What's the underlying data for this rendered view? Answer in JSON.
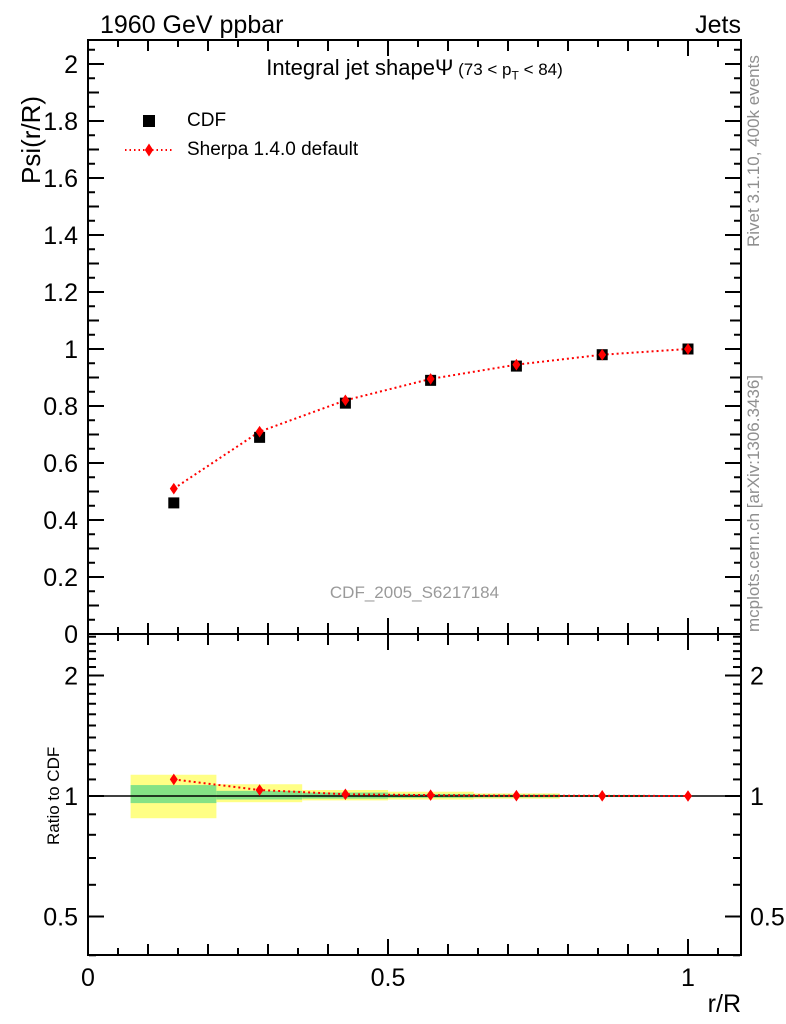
{
  "header": {
    "left": "1960 GeV ppbar",
    "right": "Jets"
  },
  "title": {
    "main": "Integral jet shapeΨ",
    "cond_pre": " (73 < p",
    "cond_sub": "T",
    "cond_post": " < 84)"
  },
  "labels": {
    "y_top": "Psi(r/R)",
    "y_ratio": "Ratio to CDF",
    "x": "r/R",
    "watermark": "CDF_2005_S6217184",
    "side_top": "Rivet 3.1.10,  400k events",
    "side_bottom": "mcplots.cern.ch [arXiv:1306.3436]"
  },
  "legend": [
    {
      "label": "CDF",
      "marker": "black-square"
    },
    {
      "label": "Sherpa 1.4.0 default",
      "marker": "red-diamond-dotted-line"
    }
  ],
  "colors": {
    "data": "#000000",
    "mc": "#ff0000",
    "band_outer": "#ffff85",
    "band_inner": "#85e285",
    "frame": "#000000",
    "gray_text": "#8f8f8f"
  },
  "chart_data": [
    {
      "type": "line",
      "panel": "main",
      "title": "Integral jet shape Psi (73 < pT < 84)",
      "xlabel": "r/R",
      "ylabel": "Psi(r/R)",
      "xlim": [
        0,
        1.088
      ],
      "ylim": [
        0,
        2.084
      ],
      "grid": false,
      "legend_position": "top-left",
      "x": [
        0.143,
        0.286,
        0.429,
        0.571,
        0.714,
        0.857,
        1.0
      ],
      "series": [
        {
          "name": "CDF",
          "marker": "square",
          "color": "#000000",
          "line": "none",
          "values": [
            0.46,
            0.69,
            0.81,
            0.89,
            0.94,
            0.98,
            1.0
          ]
        },
        {
          "name": "Sherpa 1.4.0 default",
          "marker": "diamond",
          "color": "#ff0000",
          "line": "dotted",
          "values": [
            0.51,
            0.71,
            0.82,
            0.895,
            0.945,
            0.98,
            1.0
          ]
        }
      ],
      "yticks": {
        "labeled": [
          {
            "v": 2,
            "t": "2"
          },
          {
            "v": 1.8,
            "t": "1.8"
          },
          {
            "v": 1.6,
            "t": "1.6"
          },
          {
            "v": 1.4,
            "t": "1.4"
          },
          {
            "v": 1.2,
            "t": "1.2"
          },
          {
            "v": 1,
            "t": "1"
          },
          {
            "v": 0.8,
            "t": "0.8"
          },
          {
            "v": 0.6,
            "t": "0.6"
          },
          {
            "v": 0.4,
            "t": "0.4"
          },
          {
            "v": 0.2,
            "t": "0.2"
          },
          {
            "v": 0,
            "t": "0"
          }
        ],
        "minor_step": 0.05
      },
      "xticks": {
        "labeled": [
          {
            "v": 0,
            "t": "0"
          },
          {
            "v": 0.5,
            "t": "0.5"
          },
          {
            "v": 1,
            "t": "1"
          }
        ],
        "minor_step": 0.05
      }
    },
    {
      "type": "ratio",
      "panel": "ratio",
      "ylabel": "Ratio to CDF",
      "yscale": "log",
      "ylim": [
        0.4,
        2.54
      ],
      "reference_line": 1.0,
      "x": [
        0.143,
        0.286,
        0.429,
        0.571,
        0.714,
        0.857,
        1.0
      ],
      "series": [
        {
          "name": "Sherpa 1.4.0 default / CDF",
          "marker": "diamond",
          "color": "#ff0000",
          "line": "dotted",
          "values": [
            1.1,
            1.035,
            1.01,
            1.005,
            1.002,
            1.001,
            1.0
          ]
        }
      ],
      "bands": [
        {
          "xlo": 0.071,
          "xhi": 0.214,
          "outer": [
            0.88,
            1.13
          ],
          "inner": [
            0.96,
            1.065
          ]
        },
        {
          "xlo": 0.214,
          "xhi": 0.357,
          "outer": [
            0.965,
            1.07
          ],
          "inner": [
            0.98,
            1.03
          ]
        },
        {
          "xlo": 0.357,
          "xhi": 0.5,
          "outer": [
            0.975,
            1.035
          ],
          "inner": [
            0.985,
            1.02
          ]
        },
        {
          "xlo": 0.5,
          "xhi": 0.643,
          "outer": [
            0.98,
            1.025
          ],
          "inner": [
            0.99,
            1.012
          ]
        },
        {
          "xlo": 0.643,
          "xhi": 0.786,
          "outer": [
            0.985,
            1.015
          ],
          "inner": [
            0.992,
            1.008
          ]
        },
        {
          "xlo": 0.786,
          "xhi": 0.929,
          "outer": null,
          "inner": [
            0.994,
            1.006
          ]
        }
      ],
      "yticks": {
        "labeled": [
          {
            "v": 2,
            "t": "2"
          },
          {
            "v": 1,
            "t": "1"
          },
          {
            "v": 0.5,
            "t": "0.5"
          }
        ],
        "minor": [
          0.4,
          0.6,
          0.7,
          0.8,
          0.9,
          1.1,
          1.2,
          1.3,
          1.4,
          1.5,
          1.6,
          1.7,
          1.8,
          1.9,
          2.1,
          2.2,
          2.3,
          2.4,
          2.5
        ]
      },
      "xticks": {
        "labeled": [
          {
            "v": 0,
            "t": "0"
          },
          {
            "v": 0.5,
            "t": "0.5"
          },
          {
            "v": 1,
            "t": "1"
          }
        ],
        "minor_step": 0.05
      }
    }
  ]
}
